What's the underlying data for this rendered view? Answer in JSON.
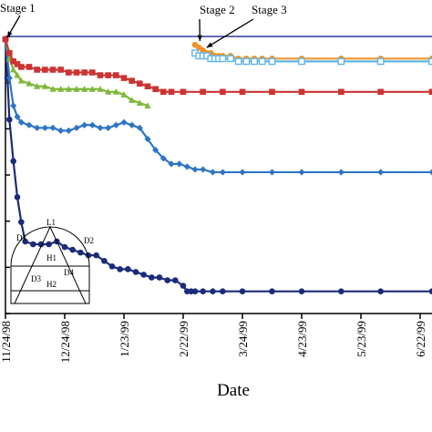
{
  "chart_data": {
    "type": "line",
    "xlabel": "Date",
    "ylabel": "",
    "x_ticks": [
      "11/24/98",
      "12/24/98",
      "1/23/99",
      "2/22/99",
      "3/24/99",
      "4/23/99",
      "5/23/99",
      "6/22/99"
    ],
    "x_tick_days": [
      0,
      30,
      60,
      90,
      120,
      150,
      180,
      210
    ],
    "x_range_days": [
      0,
      216
    ],
    "y_range": [
      0,
      100
    ],
    "annotations": [
      {
        "text": "Stage 1",
        "points_to_day": 0,
        "points_to_y": 99
      },
      {
        "text": "Stage 2",
        "points_to_day": 98,
        "points_to_y": 98
      },
      {
        "text": "Stage 3",
        "points_to_day": 100,
        "points_to_y": 96
      }
    ],
    "inset": {
      "labels": [
        "L1",
        "D1",
        "D2",
        "H1",
        "D3",
        "D4",
        "H2"
      ]
    },
    "series": [
      {
        "color": "#1b2a7a",
        "marker": "circle",
        "x": [
          0,
          1,
          2,
          4,
          6,
          8,
          10,
          14,
          18,
          22,
          26,
          30,
          34,
          38,
          42,
          46,
          50,
          54,
          58,
          62,
          66,
          70,
          74,
          78,
          82,
          86,
          90,
          92,
          94,
          96,
          100,
          105,
          110,
          120,
          135,
          150,
          170,
          190,
          216
        ],
        "y": [
          99,
          85,
          70,
          55,
          42,
          33,
          26,
          25,
          25,
          25,
          26,
          24,
          23,
          22,
          21,
          21,
          19,
          17,
          16,
          16,
          15,
          14,
          13,
          13,
          12,
          12,
          10,
          8,
          8,
          8,
          8,
          8,
          8,
          8,
          8,
          8,
          8,
          8,
          8
        ]
      },
      {
        "color": "#2e75c4",
        "marker": "diamond",
        "x": [
          0,
          2,
          4,
          6,
          8,
          12,
          16,
          20,
          24,
          28,
          32,
          36,
          40,
          44,
          48,
          52,
          56,
          60,
          64,
          68,
          72,
          76,
          80,
          84,
          88,
          92,
          96,
          100,
          105,
          110,
          120,
          135,
          150,
          170,
          190,
          216
        ],
        "y": [
          99,
          85,
          75,
          71,
          69,
          68,
          67,
          67,
          67,
          66,
          66,
          67,
          68,
          68,
          67,
          67,
          68,
          69,
          68,
          67,
          63,
          59,
          56,
          54,
          54,
          53,
          52,
          52,
          51,
          51,
          51,
          51,
          51,
          51,
          51,
          51
        ]
      },
      {
        "color": "#7fb83a",
        "marker": "triangle",
        "x": [
          0,
          2,
          4,
          6,
          8,
          12,
          16,
          20,
          24,
          28,
          32,
          36,
          40,
          44,
          48,
          52,
          56,
          60,
          64,
          68,
          72
        ],
        "y": [
          99,
          92,
          88,
          86,
          84,
          83,
          82,
          82,
          81,
          81,
          81,
          81,
          81,
          81,
          81,
          80,
          80,
          79,
          77,
          76,
          75
        ]
      },
      {
        "color": "#cc3333",
        "marker": "square",
        "x": [
          0,
          2,
          4,
          6,
          8,
          12,
          16,
          20,
          24,
          28,
          32,
          36,
          40,
          44,
          48,
          52,
          56,
          60,
          64,
          68,
          72,
          76,
          80,
          84,
          90,
          100,
          110,
          120,
          135,
          150,
          170,
          190,
          216
        ],
        "y": [
          99,
          94,
          91,
          90,
          89,
          89,
          88,
          88,
          88,
          88,
          87,
          87,
          87,
          87,
          86,
          86,
          86,
          85,
          84,
          83,
          82,
          81,
          80,
          80,
          80,
          80,
          80,
          80,
          80,
          80,
          80,
          80,
          80
        ]
      },
      {
        "color": "#f0922a",
        "marker": "circle",
        "x": [
          96,
          98,
          100,
          102,
          104,
          106,
          108,
          110,
          114,
          118,
          122,
          126,
          130,
          135,
          150,
          170,
          190,
          216
        ],
        "y": [
          97,
          96,
          95,
          94,
          94,
          93,
          93,
          93,
          93,
          92,
          92,
          92,
          92,
          92,
          92,
          92,
          92,
          92
        ]
      },
      {
        "color": "#5fb6e6",
        "marker": "square-open",
        "x": [
          96,
          98,
          100,
          102,
          104,
          106,
          108,
          110,
          114,
          118,
          122,
          126,
          130,
          135,
          150,
          170,
          190,
          216
        ],
        "y": [
          94,
          93,
          93,
          93,
          92,
          92,
          92,
          92,
          92,
          91,
          91,
          91,
          91,
          91,
          91,
          91,
          91,
          91
        ]
      }
    ]
  }
}
